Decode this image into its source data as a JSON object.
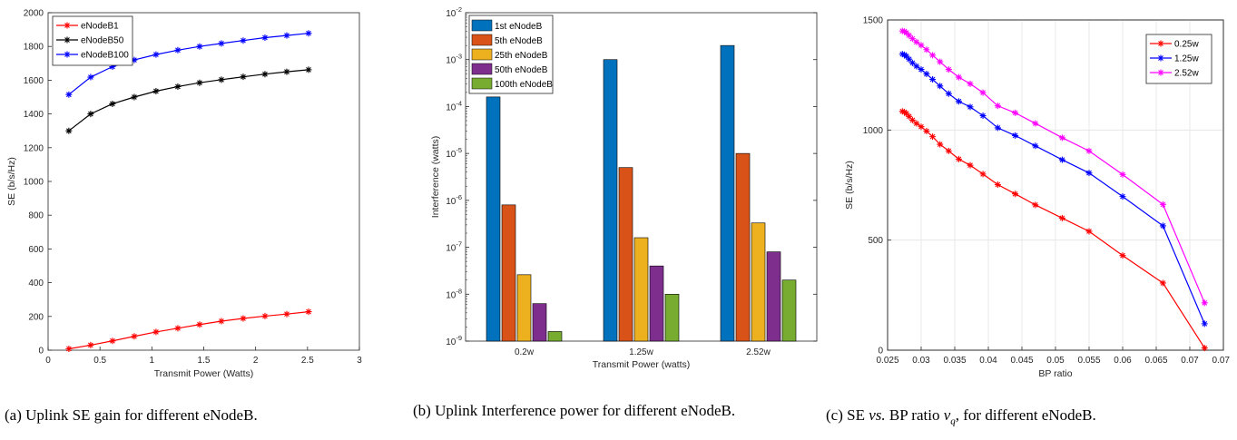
{
  "captions": {
    "a": "(a) Uplink SE gain for different eNodeB.",
    "b": "(b) Uplink Interference power for different eNodeB.",
    "c_pre": "(c) SE ",
    "c_vs": "vs.",
    "c_mid": " BP ratio ",
    "c_var": "v",
    "c_sub": "q",
    "c_post": ", for different eNodeB."
  },
  "chart_data": [
    {
      "type": "line",
      "xlabel": "Transmit Power (Watts)",
      "ylabel": "SE (b/s/Hz)",
      "xlim": [
        0,
        3
      ],
      "ylim": [
        0,
        2000
      ],
      "xticks": [
        0,
        0.5,
        1,
        1.5,
        2,
        2.5,
        3
      ],
      "xtick_labels": [
        "0",
        "0.5",
        "1",
        "1.5",
        "2",
        "2.5",
        "3"
      ],
      "yticks": [
        0,
        200,
        400,
        600,
        800,
        1000,
        1200,
        1400,
        1600,
        1800,
        2000
      ],
      "ytick_labels": [
        "0",
        "200",
        "400",
        "600",
        "800",
        "1000",
        "1200",
        "1400",
        "1600",
        "1800",
        "2000"
      ],
      "grid": false,
      "legend": "top-left",
      "x": [
        0.2,
        0.41,
        0.62,
        0.83,
        1.04,
        1.25,
        1.46,
        1.67,
        1.88,
        2.09,
        2.3,
        2.51
      ],
      "series": [
        {
          "name": "eNodeB1",
          "color": "#ff0000",
          "values": [
            8,
            30,
            55,
            82,
            108,
            130,
            152,
            172,
            188,
            202,
            214,
            228
          ]
        },
        {
          "name": "eNodeB50",
          "color": "#000000",
          "values": [
            1300,
            1400,
            1460,
            1500,
            1535,
            1562,
            1585,
            1603,
            1620,
            1636,
            1650,
            1662
          ]
        },
        {
          "name": "eNodeB100",
          "color": "#0000ff",
          "values": [
            1515,
            1618,
            1680,
            1720,
            1752,
            1778,
            1800,
            1818,
            1835,
            1852,
            1865,
            1878
          ]
        }
      ]
    },
    {
      "type": "bar",
      "xlabel": "Transmit Power (watts)",
      "ylabel": "Interference (watts)",
      "yscale": "log",
      "ylim": [
        1e-09,
        0.01
      ],
      "yticks": [
        1e-09,
        1e-08,
        1e-07,
        1e-06,
        1e-05,
        0.0001,
        0.001,
        0.01
      ],
      "ytick_base": [
        "10",
        "10",
        "10",
        "10",
        "10",
        "10",
        "10",
        "10"
      ],
      "ytick_exp": [
        "-9",
        "-8",
        "-7",
        "-6",
        "-5",
        "-4",
        "-3",
        "-2"
      ],
      "categories": [
        "0.2w",
        "1.25w",
        "2.52w"
      ],
      "legend": "top-left",
      "series": [
        {
          "name": "1st eNodeB",
          "color": "#0072bd",
          "values": [
            0.00016,
            0.001,
            0.002
          ]
        },
        {
          "name": "5th eNodeB",
          "color": "#d95319",
          "values": [
            8e-07,
            5e-06,
            1e-05
          ]
        },
        {
          "name": "25th eNodeB",
          "color": "#edb120",
          "values": [
            2.6e-08,
            1.6e-07,
            3.3e-07
          ]
        },
        {
          "name": "50th eNodeB",
          "color": "#7e2f8e",
          "values": [
            6.3e-09,
            4e-08,
            8e-08
          ]
        },
        {
          "name": "100th eNodeB",
          "color": "#77ac30",
          "values": [
            1.6e-09,
            1e-08,
            2e-08
          ]
        }
      ]
    },
    {
      "type": "line",
      "xlabel": "BP ratio",
      "ylabel": "SE (b/s/Hz)",
      "xlim": [
        0.025,
        0.075
      ],
      "ylim": [
        0,
        1500
      ],
      "xticks": [
        0.025,
        0.03,
        0.035,
        0.04,
        0.045,
        0.05,
        0.055,
        0.06,
        0.065,
        0.07,
        0.075
      ],
      "xtick_labels": [
        "0.025",
        "0.03",
        "0.035",
        "0.04",
        "0.045",
        "0.05",
        "0.055",
        "0.06",
        "0.065",
        "0.07",
        "0.075"
      ],
      "yticks": [
        0,
        500,
        1000,
        1500
      ],
      "ytick_labels": [
        "0",
        "500",
        "1000",
        "1500"
      ],
      "grid": true,
      "legend": "top-right",
      "x": [
        0.0272,
        0.0275,
        0.0278,
        0.0282,
        0.0287,
        0.0293,
        0.03,
        0.0308,
        0.0317,
        0.0328,
        0.0341,
        0.0356,
        0.0373,
        0.0392,
        0.0414,
        0.044,
        0.047,
        0.051,
        0.055,
        0.06,
        0.066,
        0.0722
      ],
      "series": [
        {
          "name": "0.25w",
          "color": "#ff0000",
          "values": [
            1085,
            1082,
            1075,
            1062,
            1045,
            1030,
            1015,
            995,
            970,
            935,
            905,
            868,
            840,
            800,
            752,
            710,
            660,
            600,
            540,
            430,
            305,
            10
          ]
        },
        {
          "name": "1.25w",
          "color": "#0000ff",
          "values": [
            1345,
            1342,
            1335,
            1322,
            1305,
            1290,
            1275,
            1255,
            1230,
            1200,
            1165,
            1130,
            1105,
            1065,
            1010,
            975,
            928,
            865,
            805,
            698,
            565,
            120
          ]
        },
        {
          "name": "2.52w",
          "color": "#ff00ff",
          "values": [
            1450,
            1448,
            1442,
            1430,
            1415,
            1400,
            1385,
            1365,
            1340,
            1310,
            1275,
            1240,
            1210,
            1170,
            1110,
            1078,
            1030,
            965,
            905,
            798,
            662,
            215
          ]
        }
      ]
    }
  ]
}
